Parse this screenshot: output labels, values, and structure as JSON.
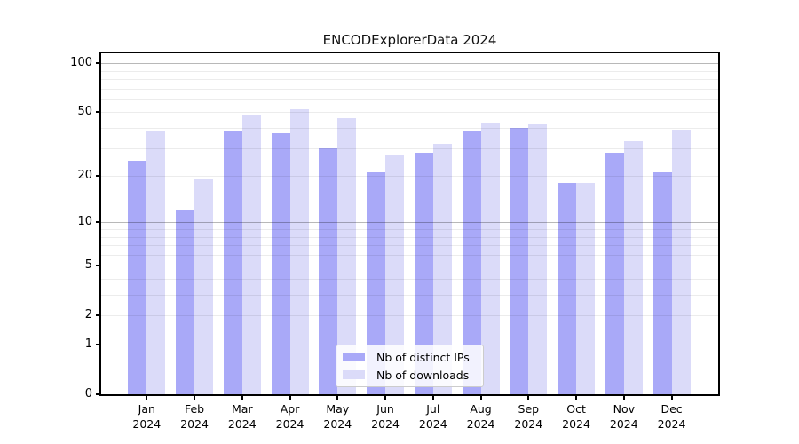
{
  "title": "ENCODExplorerData 2024",
  "chart_data": {
    "type": "bar",
    "title": "ENCODExplorerData 2024",
    "categories": [
      "Jan",
      "Feb",
      "Mar",
      "Apr",
      "May",
      "Jun",
      "Jul",
      "Aug",
      "Sep",
      "Oct",
      "Nov",
      "Dec"
    ],
    "category_year": "2024",
    "series": [
      {
        "name": "Nb of distinct IPs",
        "color": "#a9a9f8",
        "values": [
          25,
          12,
          38,
          37,
          30,
          21,
          28,
          38,
          40,
          18,
          28,
          21
        ]
      },
      {
        "name": "Nb of downloads",
        "color": "#dbdbf9",
        "values": [
          38,
          19,
          48,
          52,
          46,
          27,
          32,
          43,
          42,
          18,
          33,
          39
        ]
      }
    ],
    "yscale": "symlog-ln(1+v)",
    "ylim": [
      0,
      115
    ],
    "ytick_values": [
      0,
      1,
      2,
      5,
      10,
      20,
      50,
      100
    ],
    "ytick_labels": [
      "0",
      "1",
      "2",
      "5",
      "10",
      "20",
      "50",
      "100"
    ],
    "grid": "horizontal",
    "grid_decade_values": [
      1,
      10,
      100
    ],
    "grid_minor_values": [
      2,
      3,
      4,
      5,
      6,
      7,
      8,
      9,
      20,
      30,
      40,
      50,
      60,
      70,
      80,
      90
    ],
    "grid_decade_color": "rgba(0,0,0,0.28)",
    "grid_minor_color": "rgba(0,0,0,0.075)",
    "legend_position": "lower center",
    "frame_color": "#000000",
    "background_color": "#ffffff"
  }
}
